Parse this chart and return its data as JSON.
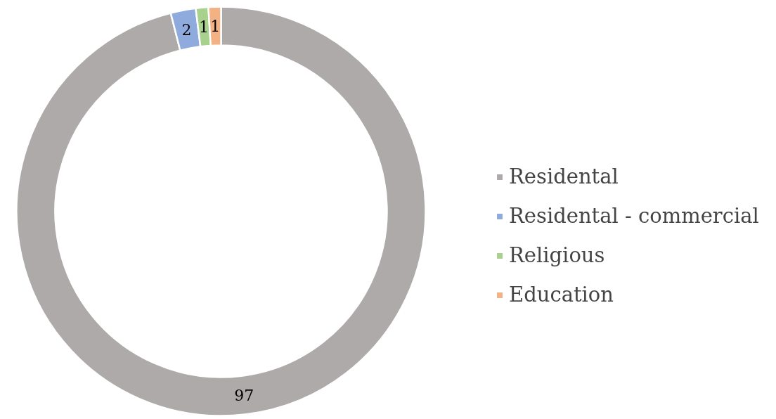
{
  "chart_data": {
    "type": "donut",
    "categories": [
      "Residental",
      "Residental - commercial",
      "Religious",
      "Education"
    ],
    "values": [
      97,
      2,
      1,
      1
    ],
    "colors": [
      "#aeaaaa",
      "#8faadc",
      "#a9d18e",
      "#f4b183"
    ],
    "data_labels": true,
    "legend": "right"
  }
}
